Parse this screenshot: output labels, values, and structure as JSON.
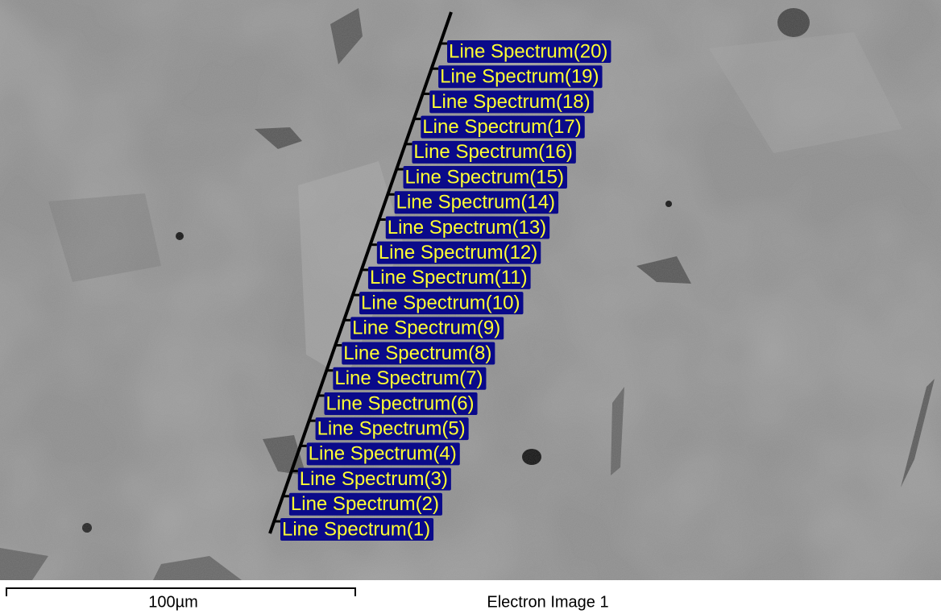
{
  "image": {
    "spectra": [
      "Line Spectrum(1)",
      "Line Spectrum(2)",
      "Line Spectrum(3)",
      "Line Spectrum(4)",
      "Line Spectrum(5)",
      "Line Spectrum(6)",
      "Line Spectrum(7)",
      "Line Spectrum(8)",
      "Line Spectrum(9)",
      "Line Spectrum(10)",
      "Line Spectrum(11)",
      "Line Spectrum(12)",
      "Line Spectrum(13)",
      "Line Spectrum(14)",
      "Line Spectrum(15)",
      "Line Spectrum(16)",
      "Line Spectrum(17)",
      "Line Spectrum(18)",
      "Line Spectrum(19)",
      "Line Spectrum(20)"
    ],
    "scale_bar": "100µm",
    "caption": "Electron Image 1"
  }
}
